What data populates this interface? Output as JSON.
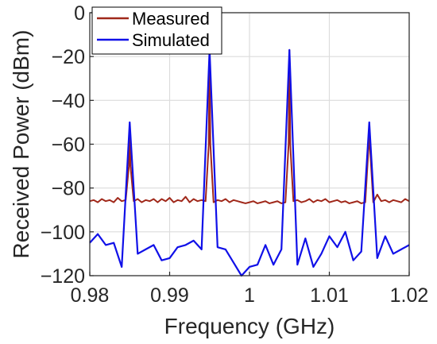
{
  "chart_data": {
    "type": "line",
    "xlabel": "Frequency (GHz)",
    "ylabel": "Received Power (dBm)",
    "xlim": [
      0.98,
      1.02
    ],
    "ylim": [
      -120,
      0
    ],
    "xticks": [
      0.98,
      0.99,
      1.0,
      1.01,
      1.02
    ],
    "xtick_labels": [
      "0.98",
      "0.99",
      "1",
      "1.01",
      "1.02"
    ],
    "yticks": [
      -120,
      -100,
      -80,
      -60,
      -40,
      -20,
      0
    ],
    "ytick_labels": [
      "−120",
      "−100",
      "−80",
      "−60",
      "−40",
      "−20",
      "0"
    ],
    "grid": true,
    "legend_position": "top-left",
    "series": [
      {
        "name": "Measured",
        "color": "#a0281a",
        "x": [
          0.98,
          0.9805,
          0.981,
          0.9815,
          0.982,
          0.9825,
          0.983,
          0.9835,
          0.984,
          0.9845,
          0.9849,
          0.985,
          0.9851,
          0.9855,
          0.986,
          0.9865,
          0.987,
          0.9875,
          0.988,
          0.9885,
          0.989,
          0.9895,
          0.99,
          0.9905,
          0.991,
          0.9915,
          0.992,
          0.9925,
          0.993,
          0.9935,
          0.994,
          0.9945,
          0.9949,
          0.995,
          0.9951,
          0.9955,
          0.996,
          0.9965,
          0.997,
          0.9975,
          0.998,
          0.9985,
          0.999,
          0.9995,
          1.0,
          1.0005,
          1.001,
          1.0015,
          1.002,
          1.0025,
          1.003,
          1.0035,
          1.004,
          1.0045,
          1.0049,
          1.005,
          1.0051,
          1.0055,
          1.006,
          1.0065,
          1.007,
          1.0075,
          1.008,
          1.0085,
          1.009,
          1.0095,
          1.01,
          1.0105,
          1.011,
          1.0115,
          1.012,
          1.0125,
          1.013,
          1.0135,
          1.014,
          1.0145,
          1.0149,
          1.015,
          1.0151,
          1.0155,
          1.016,
          1.0165,
          1.017,
          1.0175,
          1.018,
          1.0185,
          1.019,
          1.0195,
          1.02
        ],
        "y": [
          -86,
          -85.5,
          -86.5,
          -85,
          -86,
          -85.5,
          -86.5,
          -84.5,
          -86,
          -85.5,
          -70,
          -55,
          -70,
          -86,
          -85,
          -86.5,
          -85.5,
          -86,
          -85,
          -86.5,
          -85,
          -86,
          -84.5,
          -86.5,
          -85.5,
          -86,
          -84,
          -86.5,
          -85,
          -86,
          -85.5,
          -86,
          -60,
          -17,
          -60,
          -86.5,
          -85.5,
          -86,
          -85,
          -86.5,
          -85.5,
          -86,
          -86.5,
          -87,
          -86.5,
          -86,
          -87,
          -86.5,
          -86,
          -87,
          -86.5,
          -86,
          -87,
          -86.5,
          -60,
          -17,
          -60,
          -86,
          -85.5,
          -86.5,
          -86,
          -85,
          -86.5,
          -85.5,
          -86,
          -85,
          -86.5,
          -86,
          -85.5,
          -86.5,
          -86,
          -87,
          -86.5,
          -86,
          -87,
          -86.5,
          -62,
          -52,
          -62,
          -86.5,
          -83,
          -86,
          -85.5,
          -86.5,
          -85.5,
          -86,
          -86.5,
          -85,
          -86
        ]
      },
      {
        "name": "Simulated",
        "color": "#1010e8",
        "x": [
          0.98,
          0.981,
          0.982,
          0.983,
          0.984,
          0.985,
          0.986,
          0.987,
          0.988,
          0.989,
          0.99,
          0.991,
          0.992,
          0.993,
          0.994,
          0.995,
          0.996,
          0.997,
          0.998,
          0.999,
          1.0,
          1.001,
          1.002,
          1.003,
          1.004,
          1.005,
          1.006,
          1.007,
          1.008,
          1.009,
          1.01,
          1.011,
          1.012,
          1.013,
          1.014,
          1.015,
          1.016,
          1.017,
          1.018,
          1.019,
          1.02
        ],
        "y": [
          -105,
          -101,
          -106,
          -105,
          -116,
          -50,
          -110,
          -108,
          -106,
          -113,
          -112,
          -107,
          -106,
          -104,
          -108,
          -17,
          -107,
          -108,
          -114,
          -120,
          -116,
          -115,
          -106,
          -115,
          -108,
          -17,
          -115,
          -103,
          -116,
          -110,
          -102,
          -107,
          -100,
          -113,
          -109,
          -50,
          -112,
          -102,
          -110,
          -108,
          -106
        ]
      }
    ]
  }
}
